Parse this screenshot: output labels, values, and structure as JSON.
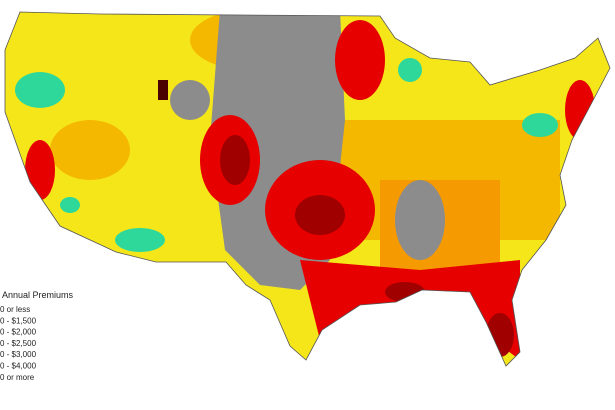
{
  "legend": {
    "title": "Annual Premiums",
    "items": [
      "0 or less",
      "0 - $1,500",
      "0 - $2,000",
      "0 - $2,500",
      "0 - $3,000",
      "0 - $4,000",
      "0 or more"
    ]
  }
}
